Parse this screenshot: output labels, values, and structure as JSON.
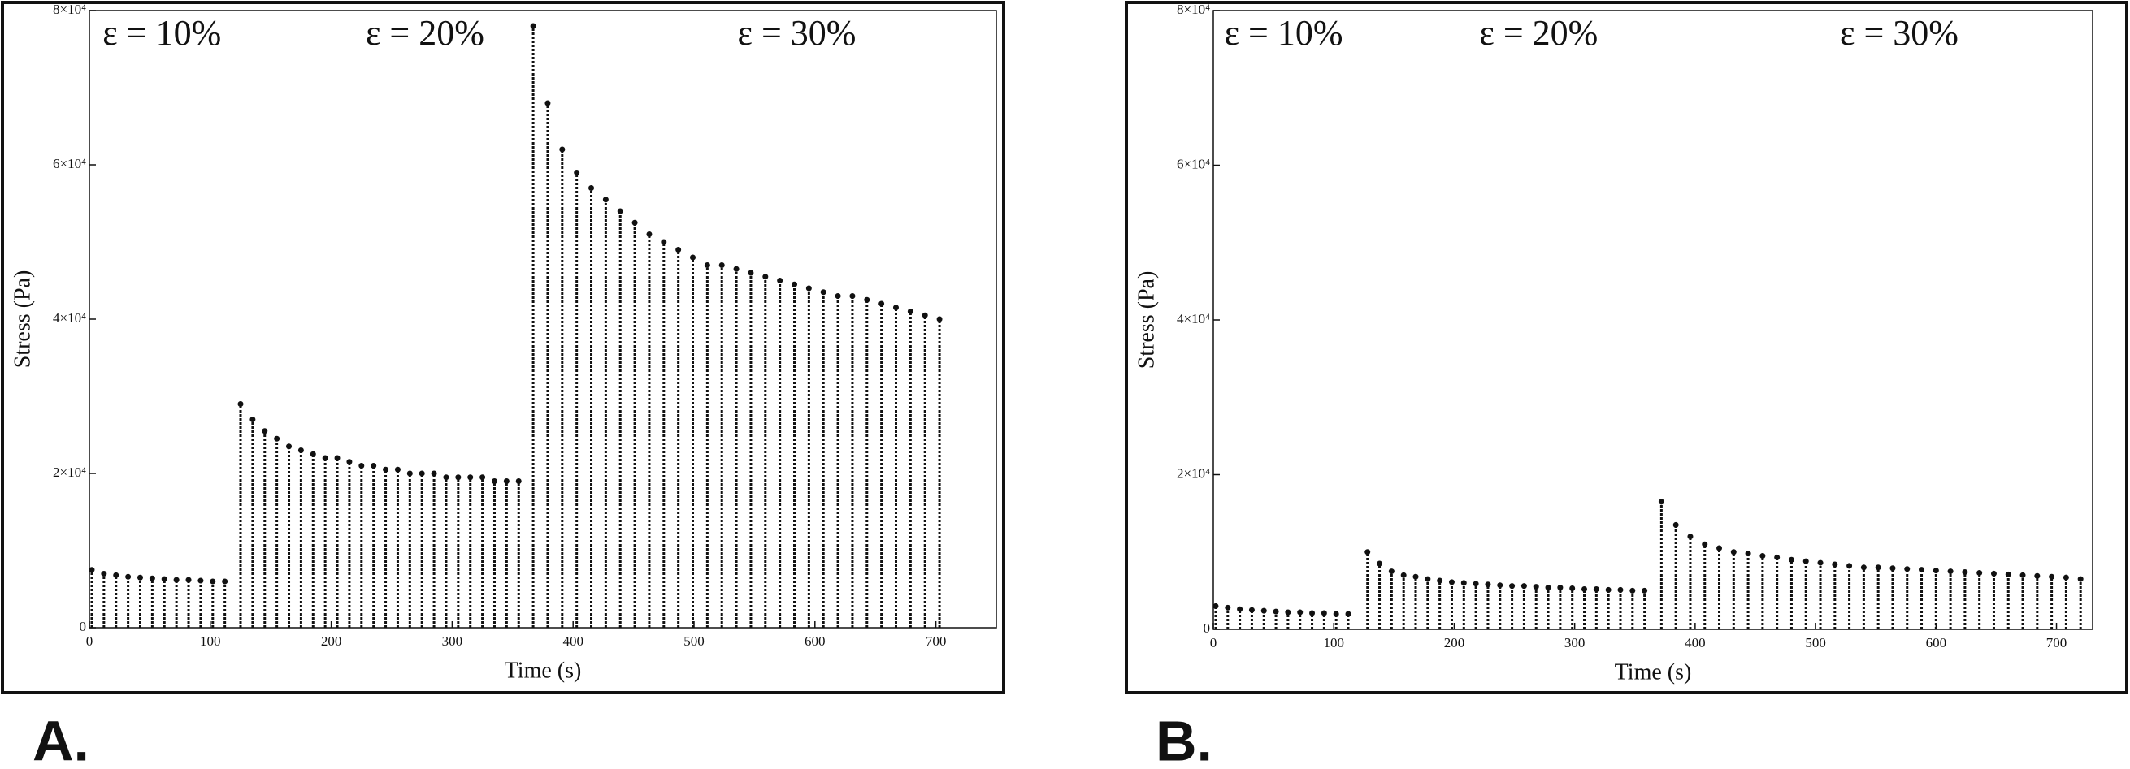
{
  "chart_data": [
    {
      "type": "stem",
      "panel_label": "A.",
      "xlabel": "Time (s)",
      "ylabel": "Stress (Pa)",
      "annotations": [
        "ε = 10%",
        "ε = 20%",
        "ε = 30%"
      ],
      "color": "#111111",
      "xlim": [
        0,
        750
      ],
      "ylim": [
        0,
        80000
      ],
      "xticks": [
        0,
        100,
        200,
        300,
        400,
        500,
        600,
        700
      ],
      "yticks": [
        0,
        {
          "value": 20000,
          "label": "2×10⁴"
        },
        {
          "value": 40000,
          "label": "4×10⁴"
        },
        {
          "value": 60000,
          "label": "6×10⁴"
        },
        {
          "value": 80000,
          "label": "8×10⁴"
        }
      ],
      "x": [
        2,
        12,
        22,
        32,
        42,
        52,
        62,
        72,
        82,
        92,
        102,
        112,
        125,
        135,
        145,
        155,
        165,
        175,
        185,
        195,
        205,
        215,
        225,
        235,
        245,
        255,
        265,
        275,
        285,
        295,
        305,
        315,
        325,
        335,
        345,
        355,
        367,
        379,
        391,
        403,
        415,
        427,
        439,
        451,
        463,
        475,
        487,
        499,
        511,
        523,
        535,
        547,
        559,
        571,
        583,
        595,
        607,
        619,
        631,
        643,
        655,
        667,
        679,
        691,
        703
      ],
      "values": [
        7500,
        7000,
        6800,
        6600,
        6500,
        6400,
        6300,
        6200,
        6200,
        6100,
        6000,
        6000,
        29000,
        27000,
        25500,
        24500,
        23500,
        23000,
        22500,
        22000,
        22000,
        21500,
        21000,
        21000,
        20500,
        20500,
        20000,
        20000,
        20000,
        19500,
        19500,
        19500,
        19500,
        19000,
        19000,
        19000,
        78000,
        68000,
        62000,
        59000,
        57000,
        55500,
        54000,
        52500,
        51000,
        50000,
        49000,
        48000,
        47000,
        47000,
        46500,
        46000,
        45500,
        45000,
        44500,
        44000,
        43500,
        43000,
        43000,
        42500,
        42000,
        41500,
        41000,
        40500,
        40000
      ]
    },
    {
      "type": "stem",
      "panel_label": "B.",
      "xlabel": "Time (s)",
      "ylabel": "Stress (Pa)",
      "annotations": [
        "ε = 10%",
        "ε = 20%",
        "ε = 30%"
      ],
      "color": "#111111",
      "xlim": [
        0,
        730
      ],
      "ylim": [
        0,
        80000
      ],
      "xticks": [
        0,
        100,
        200,
        300,
        400,
        500,
        600,
        700
      ],
      "yticks": [
        0,
        {
          "value": 20000,
          "label": "2×10⁴"
        },
        {
          "value": 40000,
          "label": "4×10⁴"
        },
        {
          "value": 60000,
          "label": "6×10⁴"
        },
        {
          "value": 80000,
          "label": "8×10⁴"
        }
      ],
      "x": [
        2,
        12,
        22,
        32,
        42,
        52,
        62,
        72,
        82,
        92,
        102,
        112,
        128,
        138,
        148,
        158,
        168,
        178,
        188,
        198,
        208,
        218,
        228,
        238,
        248,
        258,
        268,
        278,
        288,
        298,
        308,
        318,
        328,
        338,
        348,
        358,
        372,
        384,
        396,
        408,
        420,
        432,
        444,
        456,
        468,
        480,
        492,
        504,
        516,
        528,
        540,
        552,
        564,
        576,
        588,
        600,
        612,
        624,
        636,
        648,
        660,
        672,
        684,
        696,
        708,
        720
      ],
      "values": [
        3000,
        2800,
        2600,
        2500,
        2400,
        2300,
        2200,
        2200,
        2100,
        2100,
        2000,
        2000,
        10000,
        8500,
        7500,
        7000,
        6800,
        6500,
        6300,
        6100,
        6000,
        5900,
        5800,
        5700,
        5600,
        5600,
        5500,
        5400,
        5400,
        5300,
        5200,
        5200,
        5100,
        5100,
        5000,
        5000,
        16500,
        13500,
        12000,
        11000,
        10500,
        10000,
        9800,
        9500,
        9300,
        9000,
        8800,
        8600,
        8400,
        8200,
        8000,
        8000,
        7900,
        7800,
        7700,
        7600,
        7500,
        7400,
        7300,
        7200,
        7100,
        7000,
        6900,
        6800,
        6700,
        6500
      ]
    }
  ]
}
